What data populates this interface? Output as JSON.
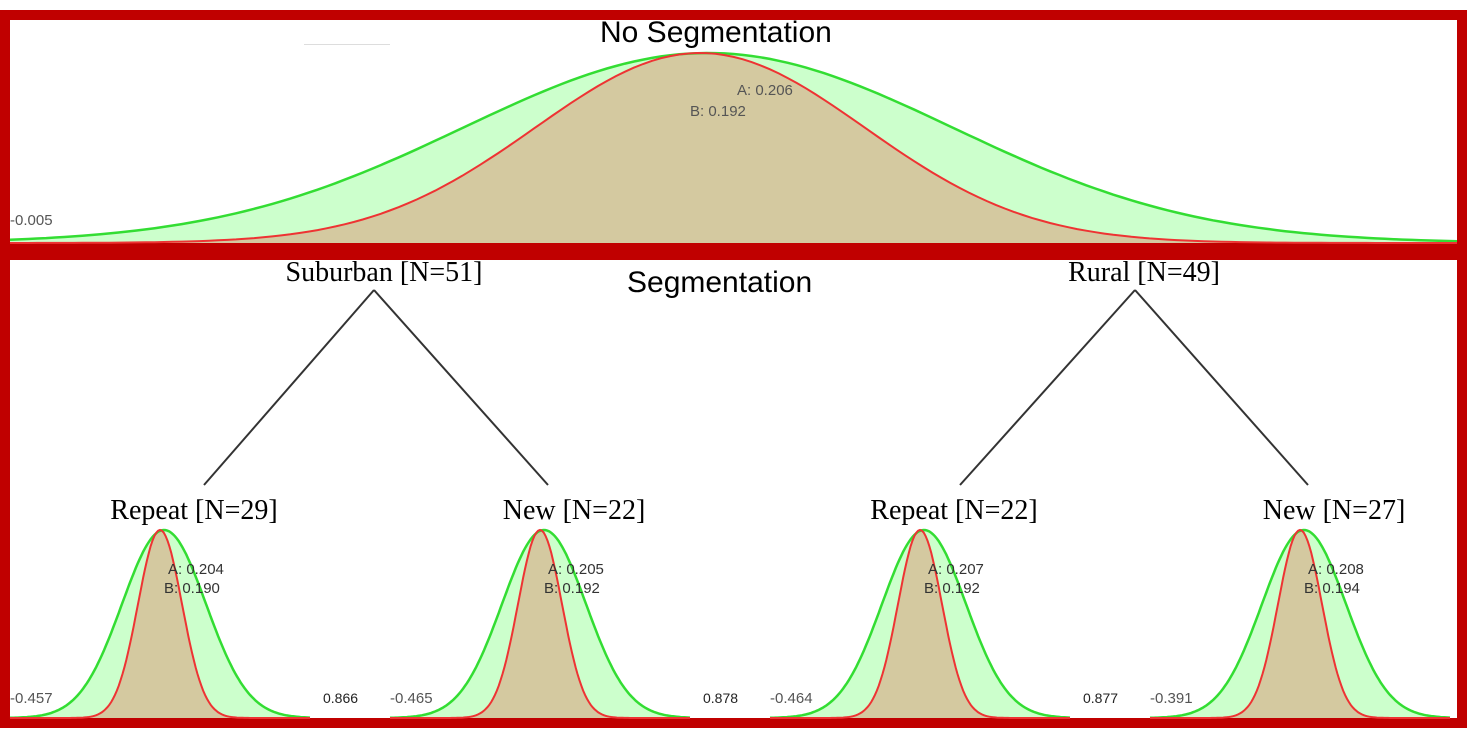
{
  "colors": {
    "frame": "#c00000",
    "green_line": "#33dd33",
    "green_fill": "#ccffcc",
    "red_line": "#ee3333",
    "overlap_fill": "#d4c9a0"
  },
  "top": {
    "title": "No Segmentation",
    "a_label": "A: 0.206",
    "b_label": "B: 0.192",
    "min_label": "-0.005"
  },
  "bottom": {
    "title": "Segmentation",
    "groups": [
      {
        "label": "Suburban [N=51]"
      },
      {
        "label": "Rural [N=49]"
      }
    ],
    "leaves": [
      {
        "label": "Repeat [N=29]",
        "a_label": "A: 0.204",
        "b_label": "B: 0.190",
        "min_label": "-0.457",
        "max_label": "0.866"
      },
      {
        "label": "New [N=22]",
        "a_label": "A: 0.205",
        "b_label": "B: 0.192",
        "min_label": "-0.465",
        "max_label": "0.878"
      },
      {
        "label": "Repeat [N=22]",
        "a_label": "A: 0.207",
        "b_label": "B: 0.192",
        "min_label": "-0.464",
        "max_label": "0.877"
      },
      {
        "label": "New [N=27]",
        "a_label": "A: 0.208",
        "b_label": "B: 0.194",
        "min_label": "-0.391",
        "max_label": ""
      }
    ]
  }
}
